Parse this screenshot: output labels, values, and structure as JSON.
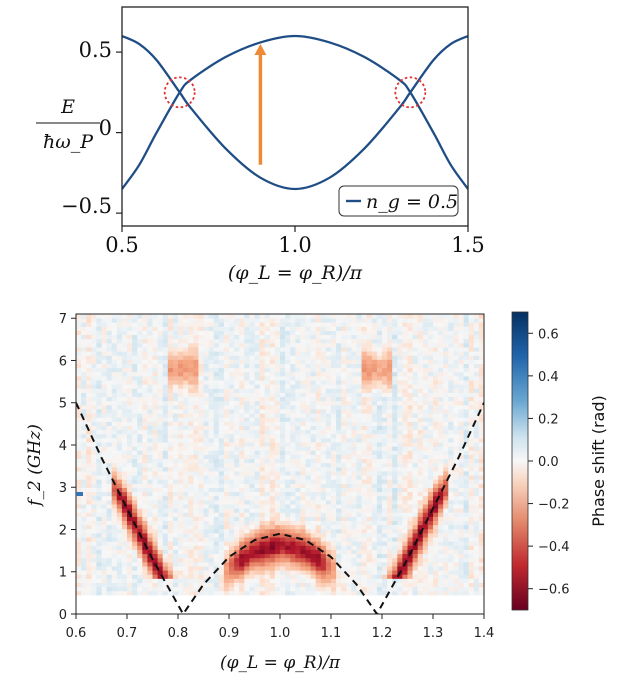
{
  "chart_data": [
    {
      "type": "line",
      "ylabel_num": "E",
      "ylabel_den": "ħω_P",
      "xlabel": "(φ_L = φ_R)/π",
      "xlim": [
        0.5,
        1.5
      ],
      "ylim": [
        -0.58,
        0.78
      ],
      "x_ticks": [
        "0.5",
        "1.0",
        "1.5"
      ],
      "y_ticks": [
        "−0.5",
        "0",
        "0.5"
      ],
      "legend": "n_g = 0.5",
      "legend_position": "lower-right",
      "line_color": "#1f4e86",
      "series": [
        {
          "values_x": [
            0.5,
            0.55,
            0.6,
            0.6667,
            0.7,
            0.8,
            0.9,
            1.0,
            1.1,
            1.2,
            1.3,
            1.3333,
            1.4,
            1.45,
            1.5
          ],
          "values_y": [
            0.6,
            0.55,
            0.45,
            0.25,
            0.15,
            -0.1,
            -0.28,
            -0.35,
            -0.28,
            -0.1,
            0.15,
            0.25,
            0.45,
            0.55,
            0.6
          ]
        },
        {
          "values_x": [
            0.5,
            0.55,
            0.6,
            0.6667,
            0.7,
            0.8,
            0.9,
            1.0,
            1.1,
            1.2,
            1.3,
            1.3333,
            1.4,
            1.45,
            1.5
          ],
          "values_y": [
            -0.35,
            -0.2,
            0.0,
            0.25,
            0.33,
            0.47,
            0.56,
            0.6,
            0.56,
            0.47,
            0.33,
            0.25,
            0.0,
            -0.2,
            -0.35
          ]
        }
      ],
      "crossings_x": [
        0.6667,
        1.3333
      ],
      "crossing_y": 0.25,
      "arrow": {
        "x": 0.9,
        "y_from": -0.2,
        "y_to": 0.55,
        "color": "#ef8a34"
      }
    },
    {
      "type": "heatmap",
      "xlabel": "(φ_L = φ_R)/π",
      "ylabel": "f_2 (GHz)",
      "xlim": [
        0.6,
        1.4
      ],
      "ylim": [
        0,
        7.1
      ],
      "x_ticks": [
        "0.6",
        "0.7",
        "0.8",
        "0.9",
        "1.0",
        "1.1",
        "1.2",
        "1.3",
        "1.4"
      ],
      "y_ticks": [
        "0",
        "1",
        "2",
        "3",
        "4",
        "5",
        "6",
        "7"
      ],
      "colorbar_label": "Phase shift (rad)",
      "colorbar_ticks": [
        "0.6",
        "0.4",
        "0.2",
        "0.0",
        "−0.2",
        "−0.4",
        "−0.6"
      ],
      "colorbar_range": [
        -0.7,
        0.7
      ],
      "data_f_min": 0.45,
      "data_f_max": 7.1,
      "dashed_curve": {
        "x": [
          0.6,
          0.65,
          0.7,
          0.75,
          0.81,
          0.85,
          0.9,
          0.95,
          1.0,
          1.05,
          1.1,
          1.15,
          1.19,
          1.25,
          1.3,
          1.35,
          1.4
        ],
        "y": [
          5.0,
          3.7,
          2.5,
          1.3,
          0.0,
          0.7,
          1.35,
          1.75,
          1.9,
          1.75,
          1.35,
          0.7,
          0.0,
          1.3,
          2.5,
          3.7,
          5.0
        ]
      },
      "resonance_features": [
        {
          "branch": "left",
          "x_range": [
            0.67,
            0.76
          ],
          "strength": -0.65
        },
        {
          "branch": "center",
          "x_range": [
            0.89,
            1.11
          ],
          "strength": -0.6
        },
        {
          "branch": "right",
          "x_range": [
            1.24,
            1.33
          ],
          "strength": -0.65
        }
      ],
      "marker_f": 2.8
    }
  ]
}
